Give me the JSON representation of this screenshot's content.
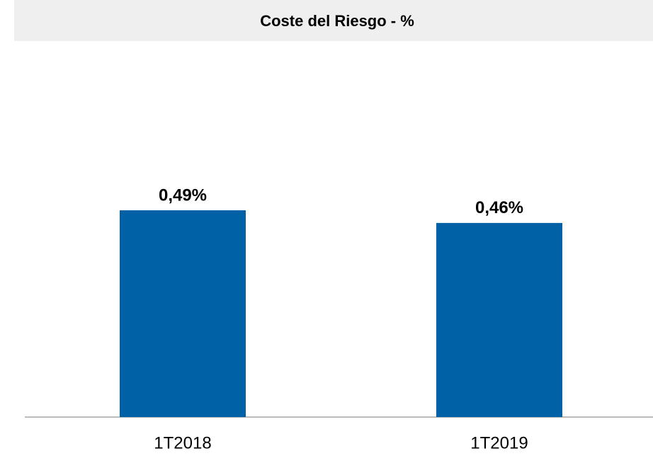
{
  "chart_data": {
    "type": "bar",
    "title": "Coste del Riesgo - %",
    "categories": [
      "1T2018",
      "1T2019"
    ],
    "values": [
      0.49,
      0.46
    ],
    "value_labels": [
      "0,49%",
      "0,46%"
    ],
    "color": "#0061a6"
  }
}
